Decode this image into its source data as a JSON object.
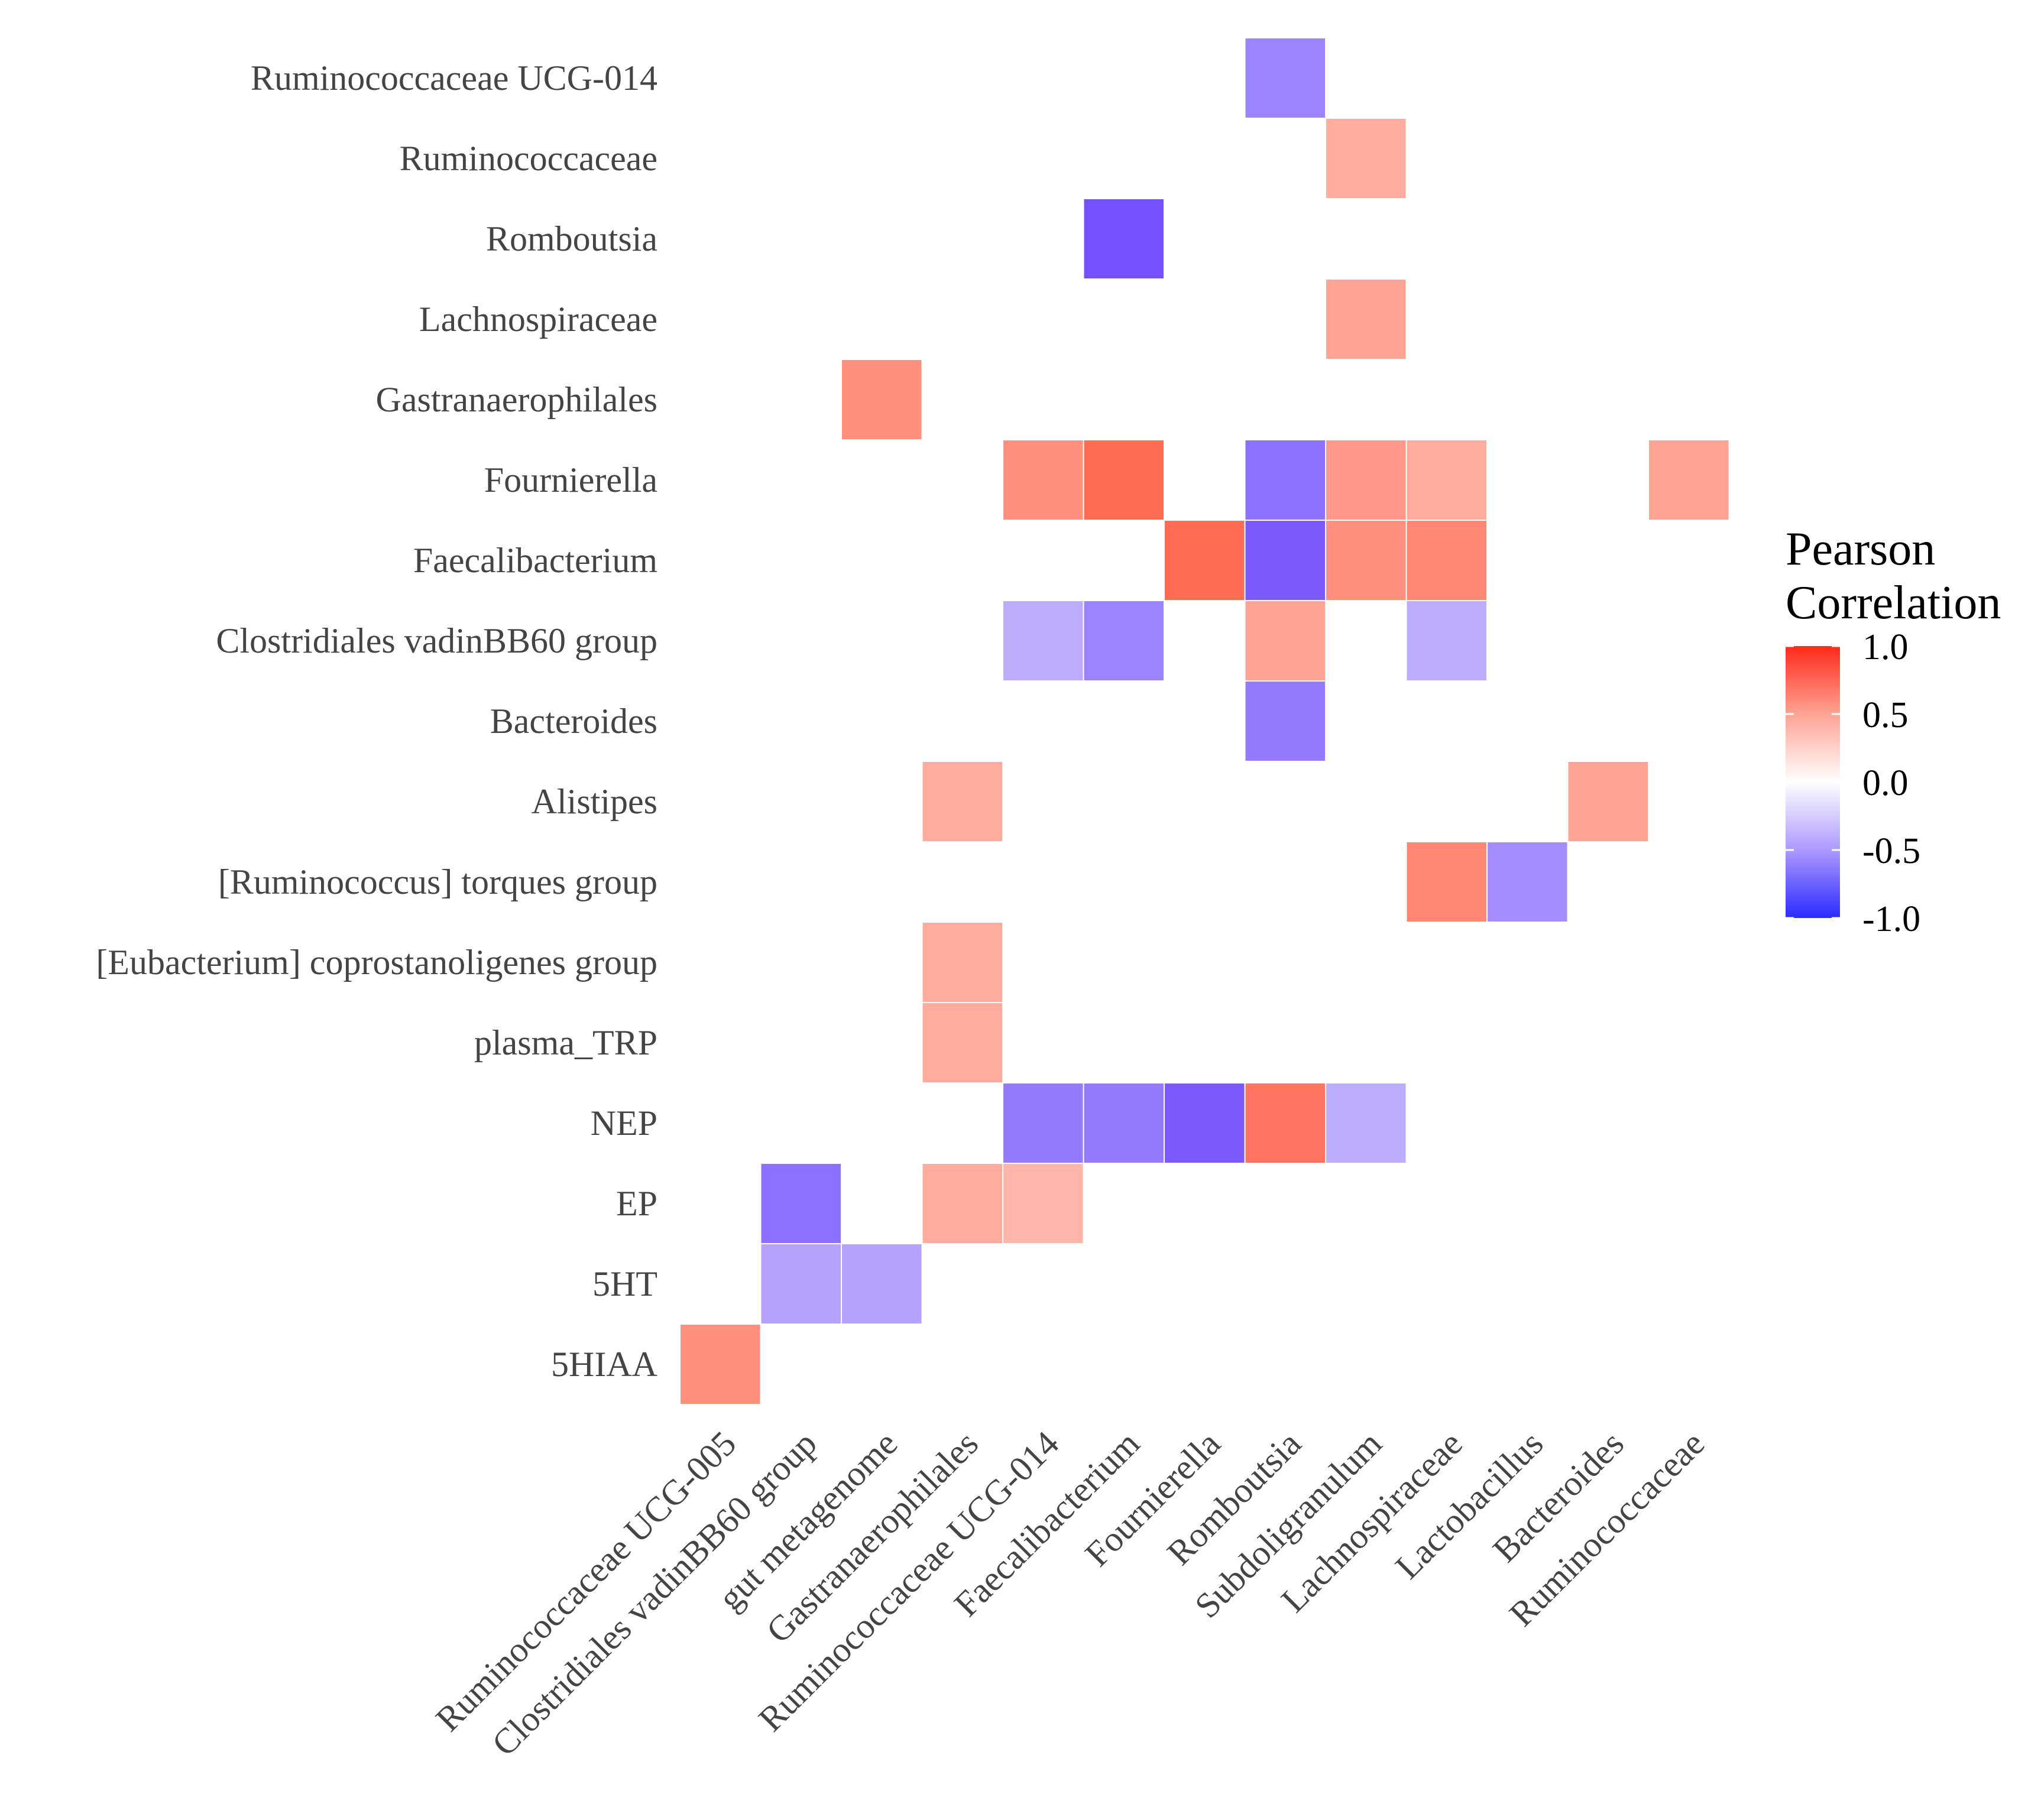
{
  "chart_data": {
    "type": "heatmap",
    "title": "",
    "xlabel": "",
    "ylabel": "",
    "x_categories": [
      "Ruminococcaceae UCG-005",
      "Clostridiales vadinBB60 group",
      "gut metagenome",
      "Gastranaerophilales",
      "Ruminococcaceae UCG-014",
      "Faecalibacterium",
      "Fournierella",
      "Romboutsia",
      "Subdoligranulum",
      "Lachnospiraceae",
      "Lactobacillus",
      "Bacteroides",
      "Ruminococcaceae"
    ],
    "y_categories": [
      "Ruminococcaceae UCG-014",
      "Ruminococcaceae",
      "Romboutsia",
      "Lachnospiraceae",
      "Gastranaerophilales",
      "Fournierella",
      "Faecalibacterium",
      "Clostridiales vadinBB60 group",
      "Bacteroides",
      "Alistipes",
      "[Ruminococcus] torques group",
      "[Eubacterium] coprostanoligenes group",
      "plasma_TRP",
      "NEP",
      "EP",
      "5HT",
      "5HIAA"
    ],
    "cells": [
      {
        "x": "Romboutsia",
        "y": "Ruminococcaceae UCG-014",
        "value": -0.6
      },
      {
        "x": "Subdoligranulum",
        "y": "Ruminococcaceae",
        "value": 0.45
      },
      {
        "x": "Faecalibacterium",
        "y": "Romboutsia",
        "value": -0.85
      },
      {
        "x": "Subdoligranulum",
        "y": "Lachnospiraceae",
        "value": 0.5
      },
      {
        "x": "gut metagenome",
        "y": "Gastranaerophilales",
        "value": 0.6
      },
      {
        "x": "Ruminococcaceae UCG-014",
        "y": "Fournierella",
        "value": 0.6
      },
      {
        "x": "Faecalibacterium",
        "y": "Fournierella",
        "value": 0.8
      },
      {
        "x": "Romboutsia",
        "y": "Fournierella",
        "value": -0.7
      },
      {
        "x": "Subdoligranulum",
        "y": "Fournierella",
        "value": 0.55
      },
      {
        "x": "Lachnospiraceae",
        "y": "Fournierella",
        "value": 0.45
      },
      {
        "x": "Ruminococcaceae",
        "y": "Fournierella",
        "value": 0.5
      },
      {
        "x": "Fournierella",
        "y": "Faecalibacterium",
        "value": 0.8
      },
      {
        "x": "Romboutsia",
        "y": "Faecalibacterium",
        "value": -0.8
      },
      {
        "x": "Subdoligranulum",
        "y": "Faecalibacterium",
        "value": 0.6
      },
      {
        "x": "Lachnospiraceae",
        "y": "Faecalibacterium",
        "value": 0.65
      },
      {
        "x": "Ruminococcaceae UCG-014",
        "y": "Clostridiales vadinBB60 group",
        "value": -0.4
      },
      {
        "x": "Faecalibacterium",
        "y": "Clostridiales vadinBB60 group",
        "value": -0.6
      },
      {
        "x": "Romboutsia",
        "y": "Clostridiales vadinBB60 group",
        "value": 0.5
      },
      {
        "x": "Lachnospiraceae",
        "y": "Clostridiales vadinBB60 group",
        "value": -0.4
      },
      {
        "x": "Romboutsia",
        "y": "Bacteroides",
        "value": -0.65
      },
      {
        "x": "Gastranaerophilales",
        "y": "Alistipes",
        "value": 0.45
      },
      {
        "x": "Bacteroides",
        "y": "Alistipes",
        "value": 0.5
      },
      {
        "x": "Lachnospiraceae",
        "y": "[Ruminococcus] torques group",
        "value": 0.65
      },
      {
        "x": "Lactobacillus",
        "y": "[Ruminococcus] torques group",
        "value": -0.55
      },
      {
        "x": "Gastranaerophilales",
        "y": "[Eubacterium] coprostanoligenes group",
        "value": 0.45
      },
      {
        "x": "Gastranaerophilales",
        "y": "plasma_TRP",
        "value": 0.45
      },
      {
        "x": "Ruminococcaceae UCG-014",
        "y": "NEP",
        "value": -0.65
      },
      {
        "x": "Faecalibacterium",
        "y": "NEP",
        "value": -0.65
      },
      {
        "x": "Fournierella",
        "y": "NEP",
        "value": -0.8
      },
      {
        "x": "Romboutsia",
        "y": "NEP",
        "value": 0.75
      },
      {
        "x": "Subdoligranulum",
        "y": "NEP",
        "value": -0.4
      },
      {
        "x": "Clostridiales vadinBB60 group",
        "y": "EP",
        "value": -0.7
      },
      {
        "x": "Gastranaerophilales",
        "y": "EP",
        "value": 0.45
      },
      {
        "x": "Ruminococcaceae UCG-014",
        "y": "EP",
        "value": 0.4
      },
      {
        "x": "Clostridiales vadinBB60 group",
        "y": "5HT",
        "value": -0.45
      },
      {
        "x": "gut metagenome",
        "y": "5HT",
        "value": -0.45
      },
      {
        "x": "Ruminococcaceae UCG-005",
        "y": "5HIAA",
        "value": 0.6
      }
    ],
    "legend": {
      "title_lines": [
        "Pearson",
        "Correlation"
      ],
      "ticks": [
        1.0,
        0.5,
        0.0,
        -0.5,
        -1.0
      ],
      "tick_labels": [
        "1.0",
        "0.5",
        "0.0",
        "-0.5",
        "-1.0"
      ],
      "placement": "right",
      "low_color": "#0000ff",
      "mid_color": "#ffffff",
      "high_color": "#ff0000",
      "range": [
        -1.0,
        1.0
      ]
    },
    "grid": false
  }
}
